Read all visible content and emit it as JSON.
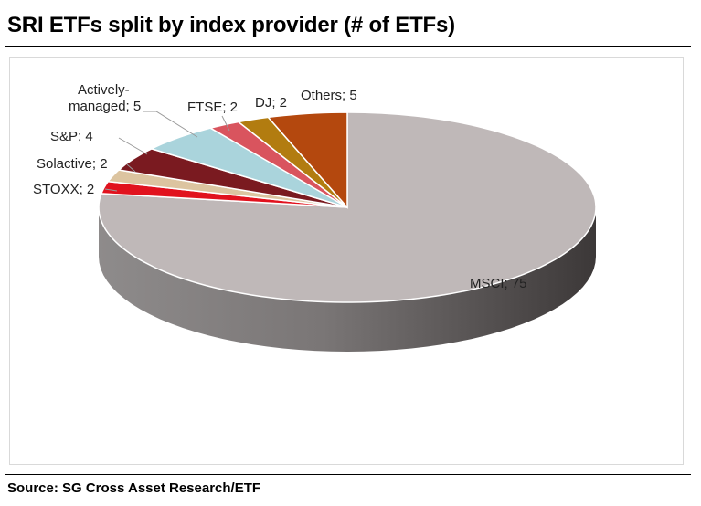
{
  "title": "SRI ETFs split by index provider (# of ETFs)",
  "source": "Source: SG Cross Asset Research/ETF",
  "chart_data": {
    "type": "pie",
    "title": "SRI ETFs split by index provider (# of ETFs)",
    "slices": [
      {
        "name": "MSCI",
        "value": 75,
        "label": "MSCI; 75",
        "color": "#bfb8b8"
      },
      {
        "name": "STOXX",
        "value": 2,
        "label": "STOXX; 2",
        "color": "#e1121e"
      },
      {
        "name": "Solactive",
        "value": 2,
        "label": "Solactive; 2",
        "color": "#dcc4a0"
      },
      {
        "name": "S&P",
        "value": 4,
        "label": "S&P; 4",
        "color": "#7a1a20"
      },
      {
        "name": "Actively-managed",
        "value": 5,
        "label_lines": [
          "Actively-",
          "managed; 5"
        ],
        "color": "#aad4dc"
      },
      {
        "name": "FTSE",
        "value": 2,
        "label": "FTSE; 2",
        "color": "#d9545e"
      },
      {
        "name": "DJ",
        "value": 2,
        "label": "DJ; 2",
        "color": "#b27c10"
      },
      {
        "name": "Others",
        "value": 5,
        "label": "Others; 5",
        "color": "#b4480e"
      }
    ]
  }
}
